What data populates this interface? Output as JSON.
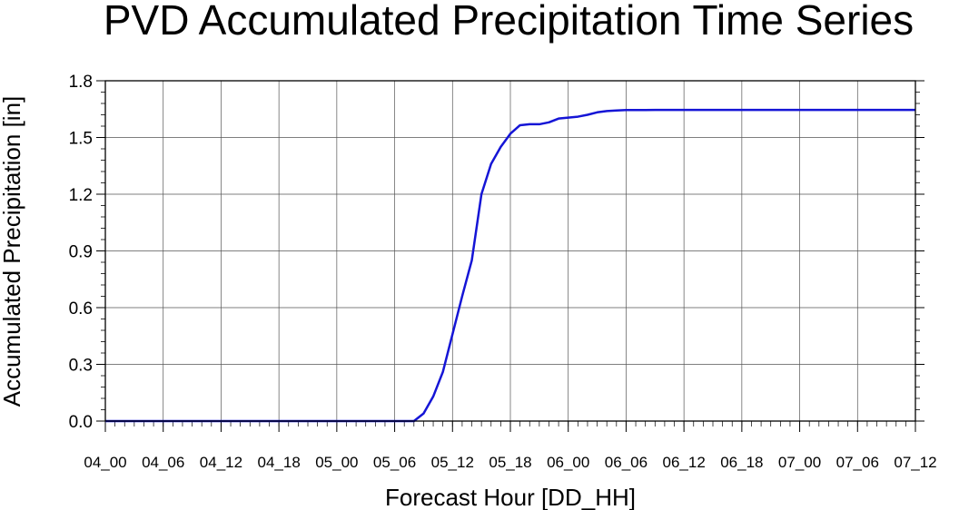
{
  "chart_data": {
    "type": "line",
    "title": "PVD Accumulated Precipitation Time Series",
    "xlabel": "Forecast Hour [DD_HH]",
    "ylabel": "Accumulated Precipitation [in]",
    "ylim": [
      0,
      1.8
    ],
    "yticks": [
      "0.0",
      "0.3",
      "0.6",
      "0.9",
      "1.2",
      "1.5",
      "1.8"
    ],
    "xlim": [
      0,
      84
    ],
    "xtick_labels": [
      "04_00",
      "04_06",
      "04_12",
      "04_18",
      "05_00",
      "05_06",
      "05_12",
      "05_18",
      "06_00",
      "06_06",
      "06_12",
      "06_18",
      "07_00",
      "07_06",
      "07_12"
    ],
    "grid": true,
    "color": "#1515d6",
    "series": [
      {
        "x": [
          0,
          1,
          2,
          3,
          4,
          5,
          6,
          7,
          8,
          9,
          10,
          11,
          12,
          13,
          14,
          15,
          16,
          17,
          18,
          19,
          20,
          21,
          22,
          23,
          24,
          25,
          26,
          27,
          28,
          29,
          30,
          31,
          32,
          33,
          34,
          35,
          36,
          37,
          38,
          39,
          40,
          41,
          42,
          43,
          44,
          45,
          46,
          47,
          48,
          49,
          50,
          51,
          52,
          53,
          54,
          55,
          56,
          57,
          58,
          59,
          60,
          61,
          62,
          63,
          64,
          65,
          66,
          67,
          68,
          69,
          70,
          71,
          72,
          73,
          74,
          75,
          76,
          77,
          78,
          79,
          80,
          81,
          82,
          83,
          84
        ],
        "values": [
          0,
          0,
          0,
          0,
          0,
          0,
          0,
          0,
          0,
          0,
          0,
          0,
          0,
          0,
          0,
          0,
          0,
          0,
          0,
          0,
          0,
          0,
          0,
          0,
          0,
          0,
          0,
          0,
          0,
          0,
          0,
          0,
          0,
          0.04,
          0.13,
          0.26,
          0.46,
          0.66,
          0.85,
          1.2,
          1.36,
          1.45,
          1.52,
          1.565,
          1.57,
          1.57,
          1.58,
          1.6,
          1.605,
          1.61,
          1.62,
          1.633,
          1.64,
          1.643,
          1.645,
          1.645,
          1.645,
          1.646,
          1.646,
          1.646,
          1.646,
          1.646,
          1.646,
          1.646,
          1.646,
          1.646,
          1.646,
          1.646,
          1.646,
          1.646,
          1.646,
          1.646,
          1.646,
          1.646,
          1.646,
          1.646,
          1.646,
          1.646,
          1.646,
          1.646,
          1.646,
          1.646,
          1.646,
          1.646,
          1.646
        ]
      }
    ]
  }
}
